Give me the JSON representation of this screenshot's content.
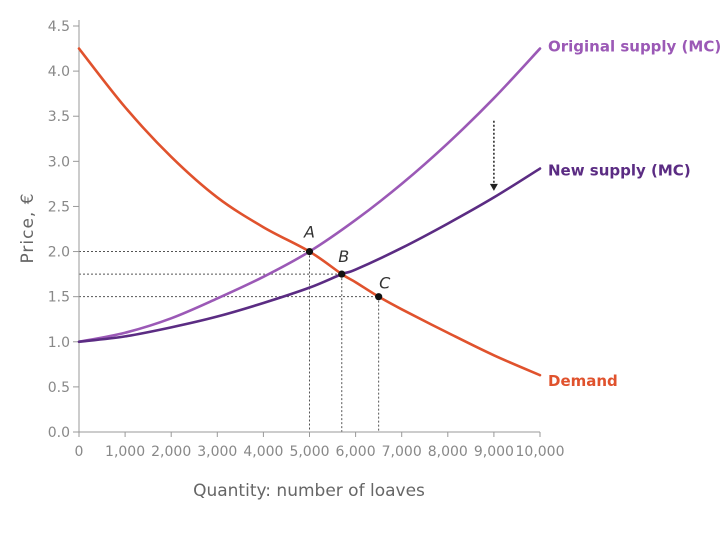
{
  "chart_data": {
    "type": "line",
    "xlabel": "Quantity: number of loaves",
    "ylabel": "Price, €",
    "xlim": [
      0,
      10000
    ],
    "ylim": [
      0,
      4.5
    ],
    "x_ticks": [
      "0",
      "1,000",
      "2,000",
      "3,000",
      "4,000",
      "5,000",
      "6,000",
      "7,000",
      "8,000",
      "9,000",
      "10,000"
    ],
    "y_ticks": [
      "0.0",
      "0.5",
      "1.0",
      "1.5",
      "2.0",
      "2.5",
      "3.0",
      "3.5",
      "4.0",
      "4.5"
    ],
    "grid": false,
    "series": [
      {
        "name": "Original supply (MC)",
        "color": "#9b59b6",
        "x": [
          0,
          1000,
          2000,
          3000,
          4000,
          5000,
          6000,
          7000,
          8000,
          9000,
          10000
        ],
        "y": [
          1.0,
          1.1,
          1.26,
          1.48,
          1.72,
          2.0,
          2.35,
          2.75,
          3.2,
          3.7,
          4.25
        ]
      },
      {
        "name": "New supply (MC)",
        "color": "#5b2c83",
        "x": [
          0,
          1000,
          2000,
          3000,
          4000,
          5000,
          5700,
          6000,
          7000,
          8000,
          9000,
          10000
        ],
        "y": [
          1.0,
          1.06,
          1.16,
          1.28,
          1.43,
          1.6,
          1.75,
          1.8,
          2.04,
          2.31,
          2.6,
          2.92
        ]
      },
      {
        "name": "Demand",
        "color": "#e0522d",
        "x": [
          0,
          1000,
          2000,
          3000,
          4000,
          5000,
          5700,
          6000,
          6500,
          7000,
          8000,
          9000,
          10000
        ],
        "y": [
          4.25,
          3.6,
          3.05,
          2.6,
          2.27,
          2.0,
          1.75,
          1.66,
          1.5,
          1.36,
          1.1,
          0.85,
          0.63
        ]
      }
    ],
    "points": [
      {
        "label": "A",
        "x": 5000,
        "y": 2.0
      },
      {
        "label": "B",
        "x": 5700,
        "y": 1.75
      },
      {
        "label": "C",
        "x": 6500,
        "y": 1.5
      }
    ]
  }
}
